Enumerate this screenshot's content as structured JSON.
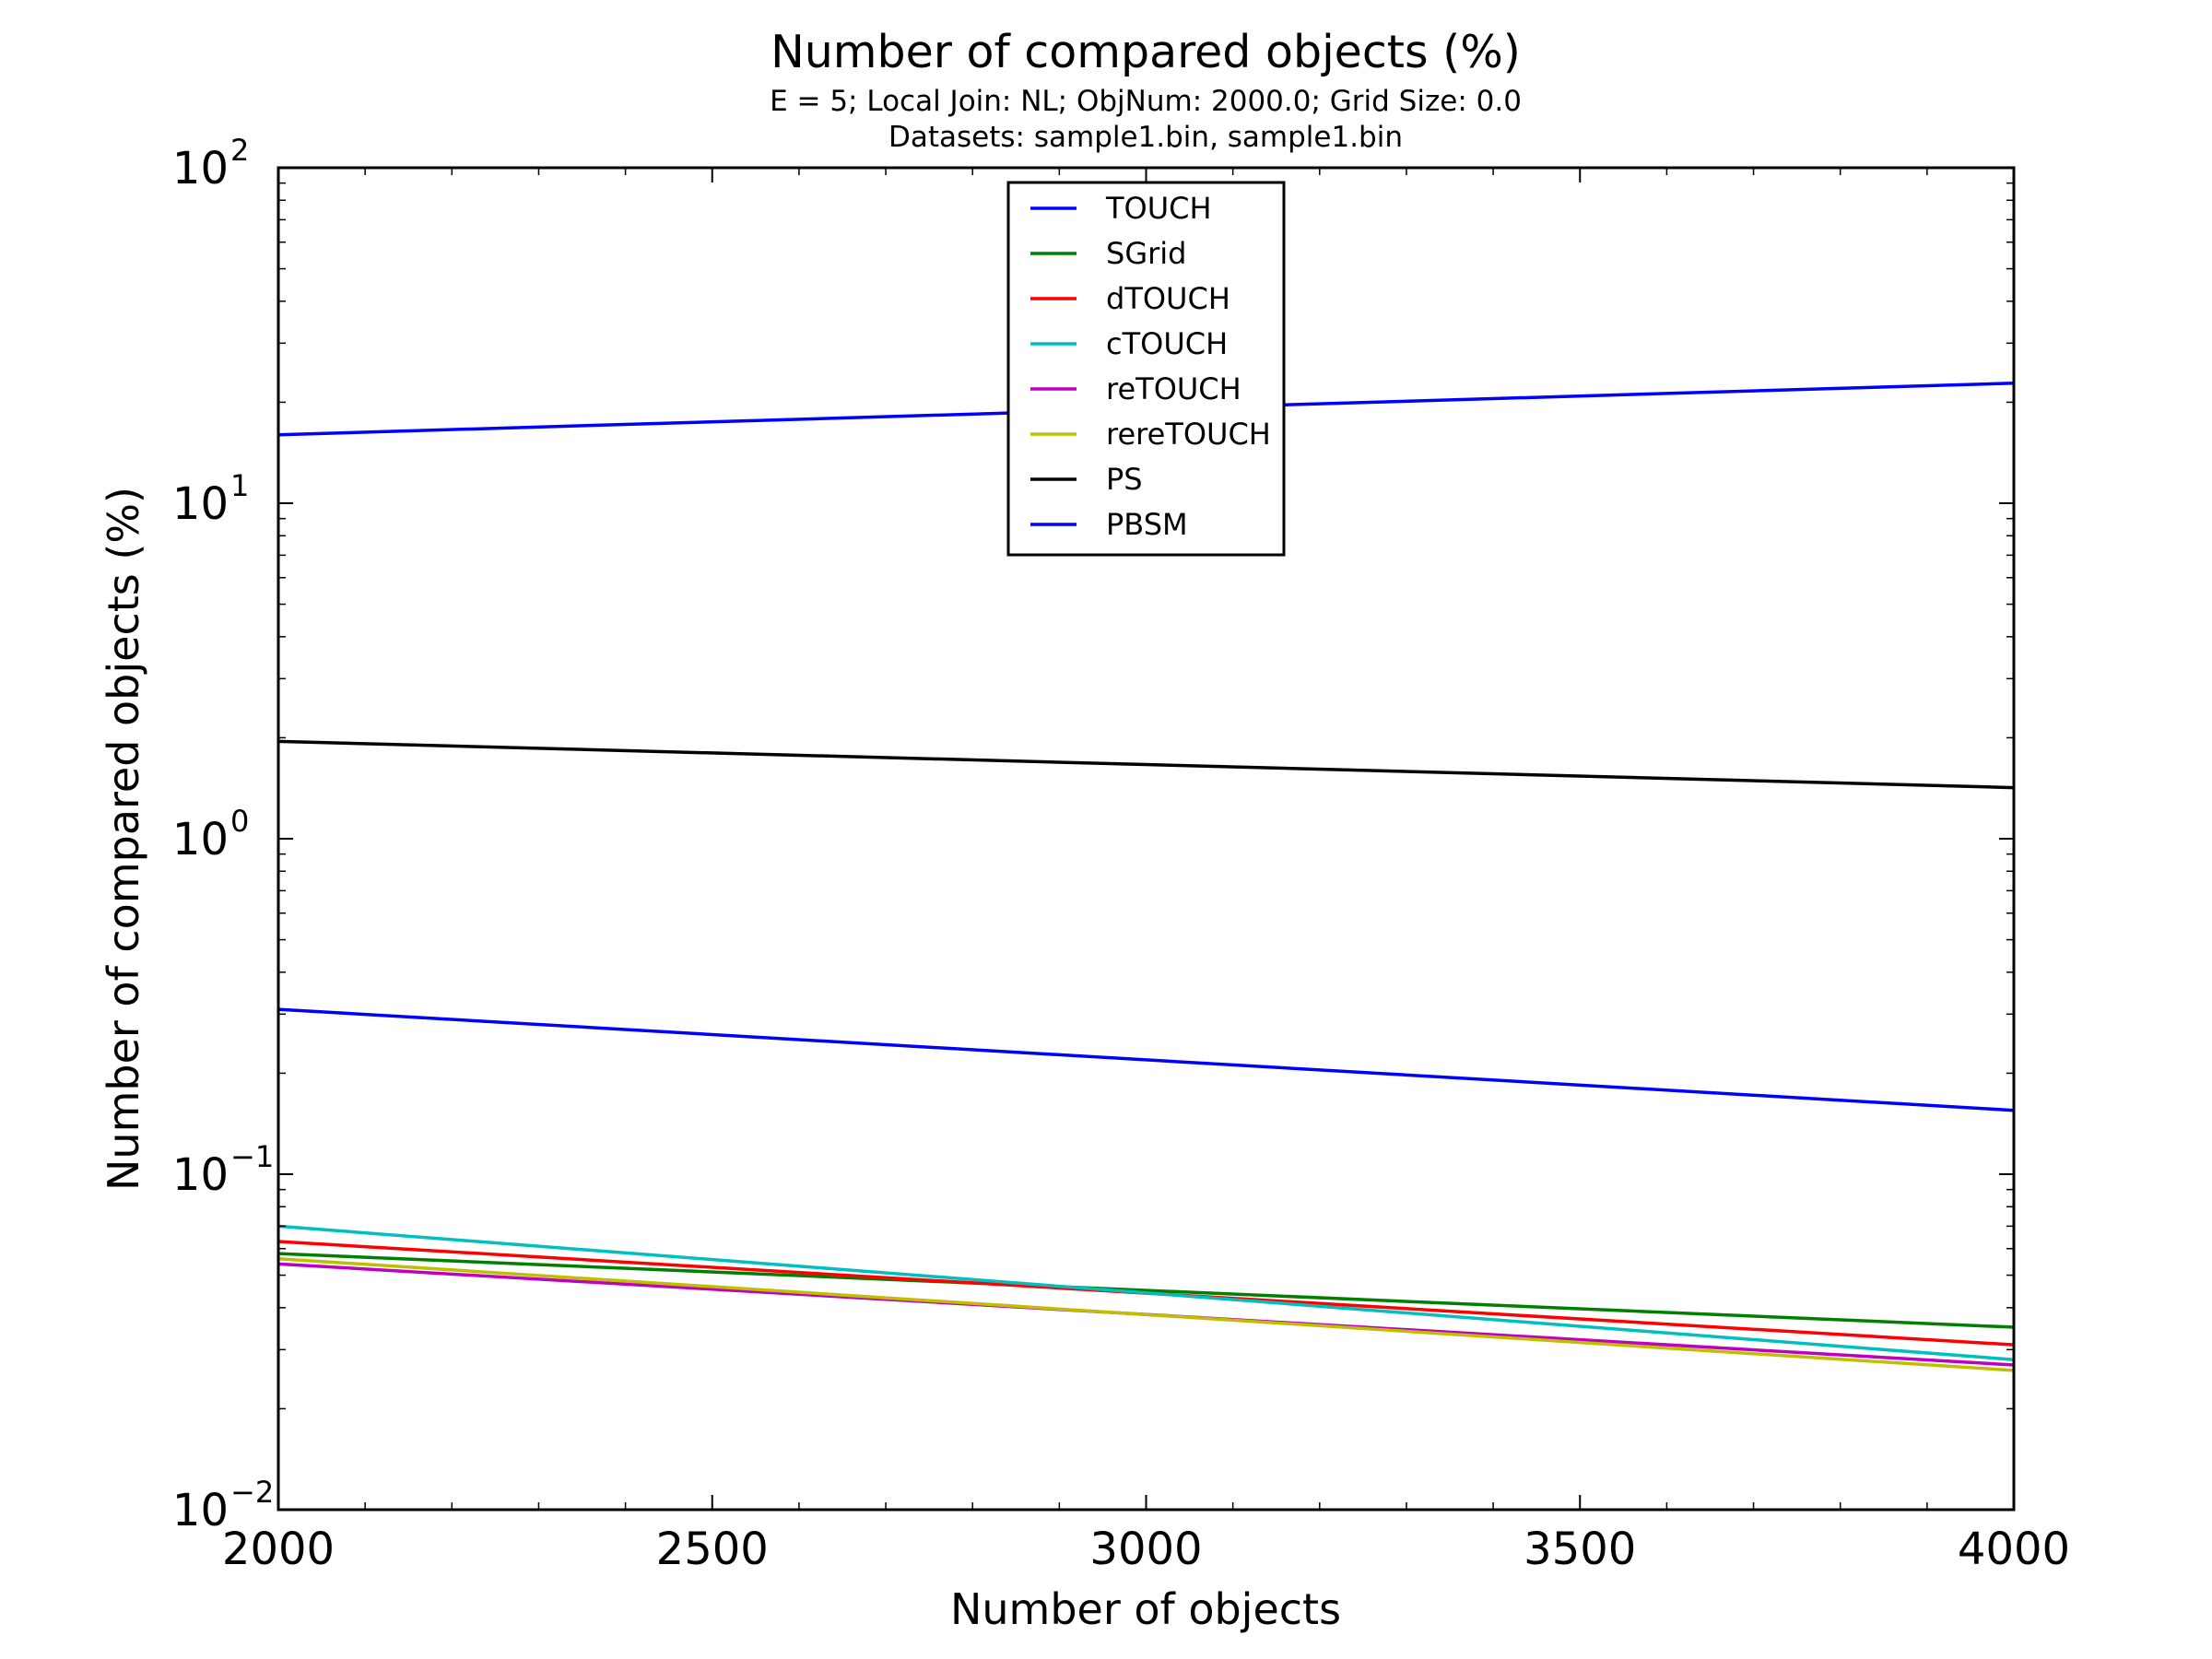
{
  "chart_data": {
    "type": "line",
    "title": "Number of compared objects (%)",
    "subtitle_lines": [
      "E = 5; Local Join: NL; ObjNum: 2000.0; Grid Size: 0.0",
      "Datasets: sample1.bin, sample1.bin"
    ],
    "xlabel": "Number of objects",
    "ylabel": "Number of compared objects (%)",
    "xlim": [
      2000,
      4000
    ],
    "ylim": [
      0.01,
      100
    ],
    "yscale": "log",
    "grid": false,
    "legend_position": "top-center",
    "x_ticks": [
      {
        "value": 2000,
        "label": "2000"
      },
      {
        "value": 2500,
        "label": "2500"
      },
      {
        "value": 3000,
        "label": "3000"
      },
      {
        "value": 3500,
        "label": "3500"
      },
      {
        "value": 4000,
        "label": "4000"
      }
    ],
    "y_ticks": [
      {
        "value": 0.01,
        "base": "10",
        "exp": "−2"
      },
      {
        "value": 0.1,
        "base": "10",
        "exp": "−1"
      },
      {
        "value": 1,
        "base": "10",
        "exp": "0"
      },
      {
        "value": 10,
        "base": "10",
        "exp": "1"
      },
      {
        "value": 100,
        "base": "10",
        "exp": "2"
      }
    ],
    "series": [
      {
        "name": "TOUCH",
        "color": "#0000ff",
        "x": [
          2000,
          4000
        ],
        "y": [
          16,
          22.8
        ]
      },
      {
        "name": "SGrid",
        "color": "#008000",
        "x": [
          2000,
          4000
        ],
        "y": [
          0.058,
          0.035
        ]
      },
      {
        "name": "dTOUCH",
        "color": "#ff0000",
        "x": [
          2000,
          4000
        ],
        "y": [
          0.063,
          0.031
        ]
      },
      {
        "name": "cTOUCH",
        "color": "#00bfbf",
        "x": [
          2000,
          4000
        ],
        "y": [
          0.07,
          0.028
        ]
      },
      {
        "name": "reTOUCH",
        "color": "#bf00bf",
        "x": [
          2000,
          4000
        ],
        "y": [
          0.054,
          0.027
        ]
      },
      {
        "name": "rereTOUCH",
        "color": "#bfbf00",
        "x": [
          2000,
          4000
        ],
        "y": [
          0.056,
          0.026
        ]
      },
      {
        "name": "PS",
        "color": "#000000",
        "x": [
          2000,
          4000
        ],
        "y": [
          1.95,
          1.42
        ]
      },
      {
        "name": "PBSM",
        "color": "#0000ff",
        "x": [
          2000,
          4000
        ],
        "y": [
          0.31,
          0.155
        ]
      }
    ]
  }
}
